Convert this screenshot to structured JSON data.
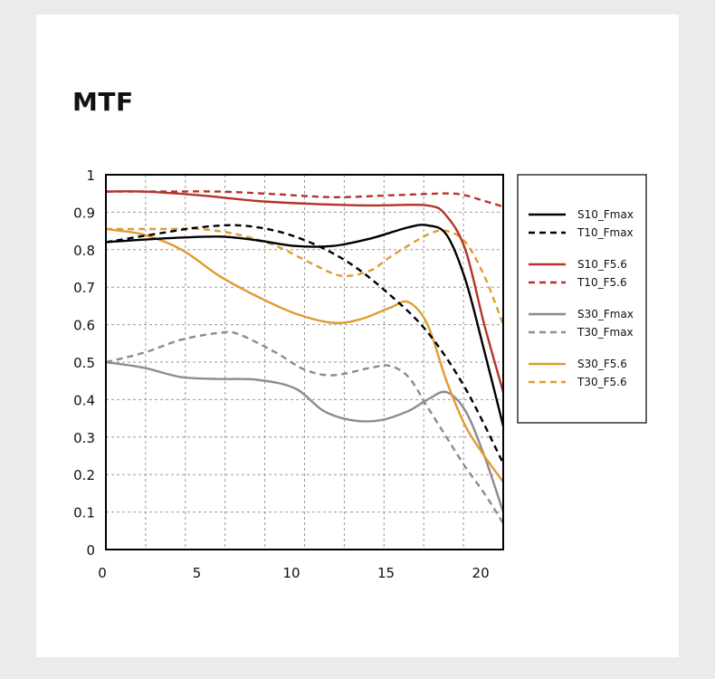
{
  "chart_data": {
    "type": "line",
    "title": "MTF",
    "xlabel": "",
    "ylabel": "",
    "xlim": [
      0,
      21
    ],
    "ylim": [
      0,
      1
    ],
    "x_ticks": [
      "0",
      "5",
      "10",
      "15",
      "20"
    ],
    "x_tick_values": [
      0,
      5,
      10,
      15,
      20
    ],
    "y_ticks": [
      "0",
      "0.1",
      "0.2",
      "0.3",
      "0.4",
      "0.5",
      "0.6",
      "0.7",
      "0.8",
      "0.9",
      "1"
    ],
    "y_tick_values": [
      0,
      0.1,
      0.2,
      0.3,
      0.4,
      0.5,
      0.6,
      0.7,
      0.8,
      0.9,
      1
    ],
    "grid": true,
    "grid_x_divisions": 10,
    "legend_position": "right",
    "series": [
      {
        "name": "S10_Fmax",
        "color": "#000000",
        "dashed": false,
        "x": [
          0,
          3,
          6,
          8,
          10,
          12,
          14,
          16,
          17,
          18,
          19,
          20,
          21
        ],
        "y": [
          0.82,
          0.83,
          0.835,
          0.825,
          0.81,
          0.81,
          0.83,
          0.86,
          0.865,
          0.84,
          0.72,
          0.53,
          0.33
        ]
      },
      {
        "name": "T10_Fmax",
        "color": "#000000",
        "dashed": true,
        "x": [
          0,
          3,
          5,
          7,
          9,
          11,
          13,
          15,
          17,
          19,
          21
        ],
        "y": [
          0.82,
          0.845,
          0.86,
          0.865,
          0.85,
          0.815,
          0.76,
          0.68,
          0.58,
          0.43,
          0.23
        ]
      },
      {
        "name": "S10_F5.6",
        "color": "#b5332b",
        "dashed": false,
        "x": [
          0,
          2,
          5,
          8,
          11,
          14,
          17,
          18,
          19,
          20,
          21
        ],
        "y": [
          0.955,
          0.955,
          0.945,
          0.93,
          0.922,
          0.918,
          0.918,
          0.89,
          0.8,
          0.6,
          0.42
        ]
      },
      {
        "name": "T10_F5.6",
        "color": "#b5332b",
        "dashed": true,
        "x": [
          0,
          3,
          6,
          9,
          12,
          15,
          18,
          19,
          20,
          21
        ],
        "y": [
          0.955,
          0.955,
          0.955,
          0.948,
          0.94,
          0.945,
          0.95,
          0.945,
          0.93,
          0.915
        ]
      },
      {
        "name": "S30_Fmax",
        "color": "#8c8c8c",
        "dashed": false,
        "x": [
          0,
          2,
          4,
          6,
          8,
          10,
          11.5,
          13,
          14.5,
          16,
          17,
          18,
          19,
          20,
          21
        ],
        "y": [
          0.5,
          0.485,
          0.46,
          0.455,
          0.453,
          0.43,
          0.37,
          0.345,
          0.345,
          0.37,
          0.4,
          0.42,
          0.37,
          0.25,
          0.1
        ]
      },
      {
        "name": "T30_Fmax",
        "color": "#8c8c8c",
        "dashed": true,
        "x": [
          0,
          2,
          4,
          6,
          7,
          9,
          10.5,
          12,
          14,
          15,
          16,
          17,
          18,
          19,
          20,
          21
        ],
        "y": [
          0.5,
          0.525,
          0.56,
          0.578,
          0.575,
          0.525,
          0.48,
          0.465,
          0.485,
          0.49,
          0.46,
          0.38,
          0.3,
          0.22,
          0.15,
          0.07
        ]
      },
      {
        "name": "S30_F5.6",
        "color": "#e09b30",
        "dashed": false,
        "x": [
          0,
          2,
          4,
          6,
          8,
          10,
          12,
          13.5,
          15,
          16,
          17,
          18,
          19,
          20,
          21
        ],
        "y": [
          0.855,
          0.84,
          0.8,
          0.73,
          0.675,
          0.63,
          0.605,
          0.615,
          0.645,
          0.66,
          0.6,
          0.45,
          0.33,
          0.25,
          0.18
        ]
      },
      {
        "name": "T30_F5.6",
        "color": "#e09b30",
        "dashed": true,
        "x": [
          0,
          3,
          5,
          7,
          9,
          11,
          12.5,
          14,
          15,
          17,
          18,
          19,
          20,
          21
        ],
        "y": [
          0.855,
          0.855,
          0.855,
          0.84,
          0.81,
          0.76,
          0.73,
          0.745,
          0.78,
          0.84,
          0.85,
          0.82,
          0.73,
          0.6
        ]
      }
    ]
  }
}
